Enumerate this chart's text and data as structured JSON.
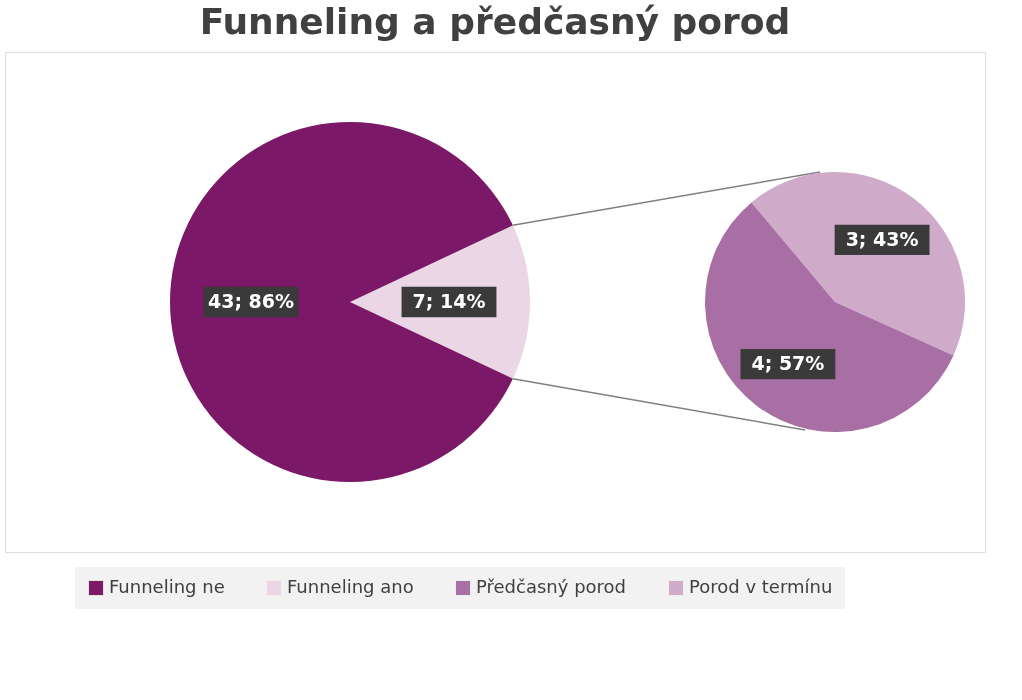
{
  "chart_data": [
    {
      "type": "pie",
      "title": "Funneling a předčasný porod",
      "categories": [
        "Funneling ne",
        "Funneling ano"
      ],
      "values": [
        43,
        7
      ],
      "colors": [
        "#7b1868",
        "#ead6e4"
      ],
      "value_labels": [
        "43; 86%",
        "7; 14%"
      ],
      "legend": "bottom"
    },
    {
      "type": "pie",
      "categories": [
        "Předčasný porod",
        "Porod v termínu"
      ],
      "values": [
        4,
        3
      ],
      "colors": [
        "#a86fa4",
        "#cfaac9"
      ],
      "value_labels": [
        "4; 57%",
        "3; 43%"
      ],
      "legend": "bottom"
    }
  ]
}
